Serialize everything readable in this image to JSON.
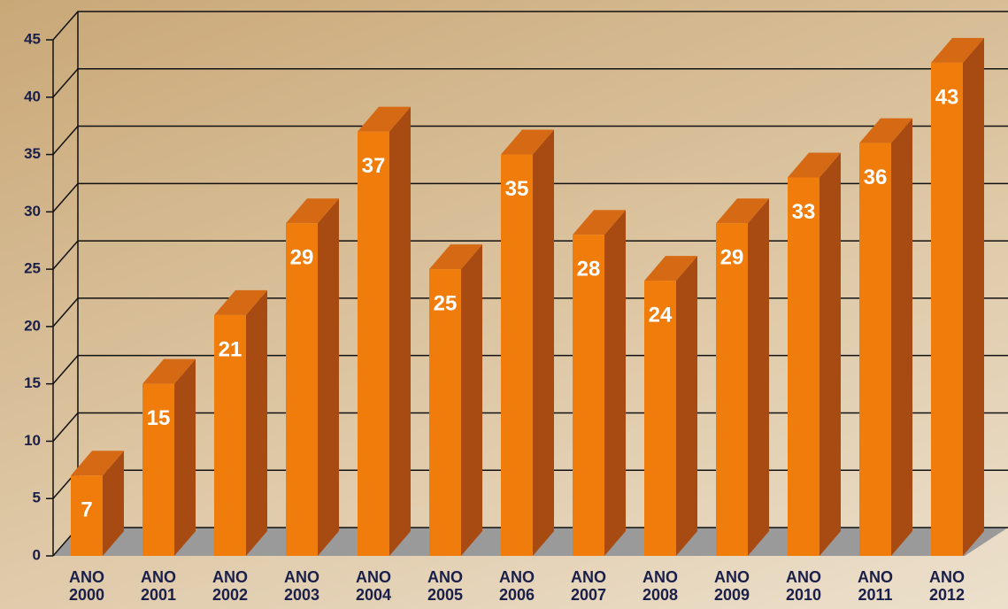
{
  "chart_data": {
    "type": "bar",
    "categories": [
      "ANO 2000",
      "ANO 2001",
      "ANO 2002",
      "ANO 2003",
      "ANO 2004",
      "ANO 2005",
      "ANO 2006",
      "ANO 2007",
      "ANO 2008",
      "ANO 2009",
      "ANO 2010",
      "ANO 2011",
      "ANO 2012"
    ],
    "values": [
      7,
      15,
      21,
      29,
      37,
      25,
      35,
      28,
      24,
      29,
      33,
      36,
      43
    ],
    "color": "#f07c0c",
    "ylim": [
      0,
      45
    ],
    "yticks": [
      0,
      5,
      10,
      15,
      20,
      25,
      30,
      35,
      40,
      45
    ],
    "grid": true
  }
}
